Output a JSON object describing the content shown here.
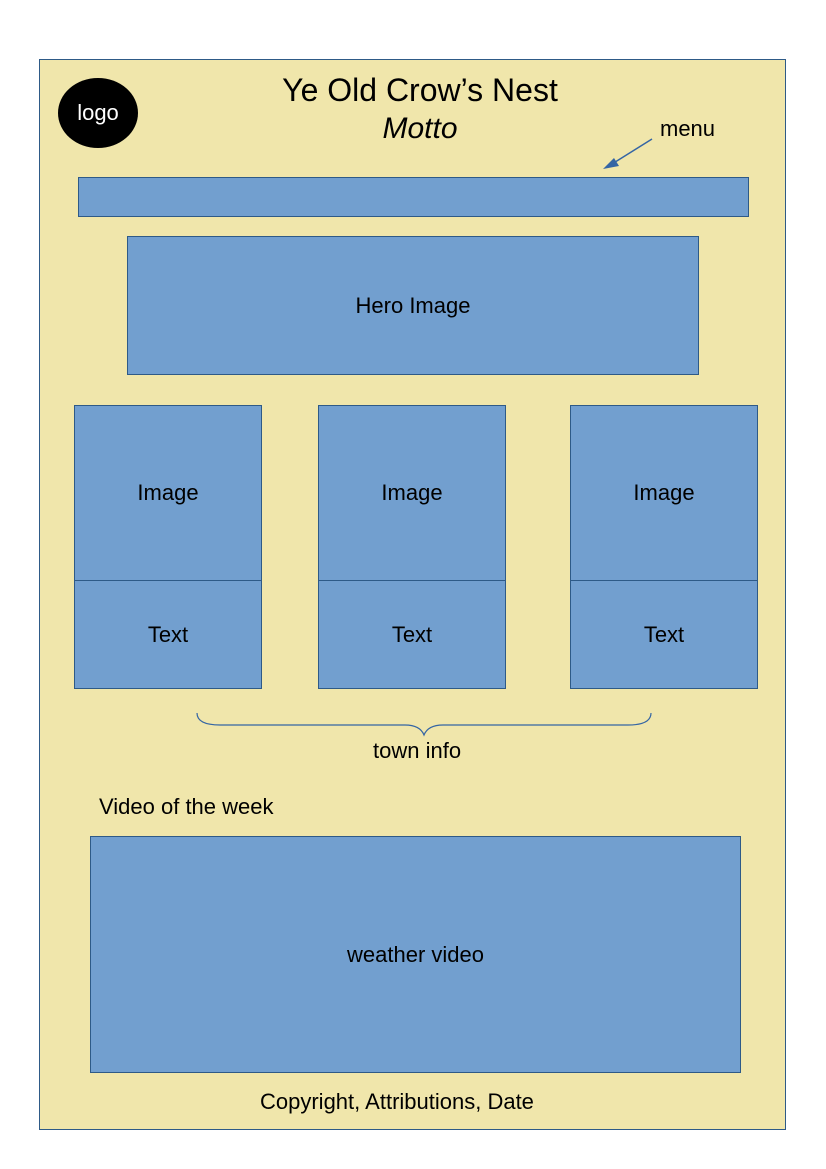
{
  "header": {
    "logo_text": "logo",
    "title": "Ye Old Crow’s Nest",
    "motto": "Motto"
  },
  "menu": {
    "annotation": "menu"
  },
  "hero": {
    "label": "Hero Image"
  },
  "cards": [
    {
      "image_label": "Image",
      "text_label": "Text"
    },
    {
      "image_label": "Image",
      "text_label": "Text"
    },
    {
      "image_label": "Image",
      "text_label": "Text"
    }
  ],
  "town_info": {
    "annotation": "town info"
  },
  "video": {
    "section_title": "Video of the week",
    "label": "weather video"
  },
  "footer": {
    "text": "Copyright, Attributions, Date"
  },
  "colors": {
    "page_background": "#f0e6ab",
    "box_fill": "#729fcf",
    "box_border": "#2e5a87",
    "logo_fill": "#000000"
  }
}
